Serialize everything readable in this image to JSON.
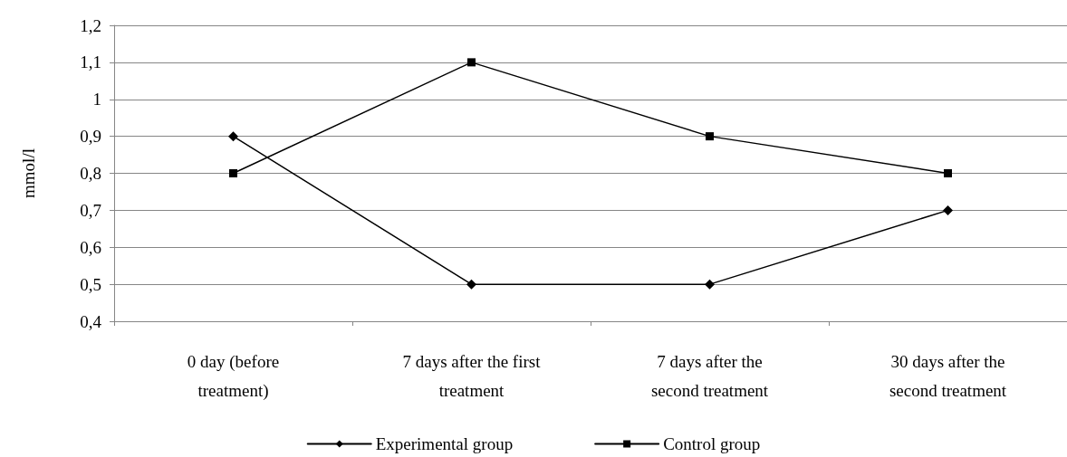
{
  "chart_data": {
    "type": "line",
    "ylabel": "mmol/l",
    "categories": [
      "0 day (before treatment)",
      "7 days after the first treatment",
      "7 days after the second treatment",
      "30 days after the second treatment"
    ],
    "series": [
      {
        "name": "Experimental group",
        "color": "#000000",
        "marker": "diamond",
        "values": [
          0.9,
          0.5,
          0.5,
          0.7
        ]
      },
      {
        "name": "Control group",
        "color": "#000000",
        "marker": "square",
        "values": [
          0.8,
          1.1,
          0.9,
          0.8
        ]
      }
    ],
    "ylim": [
      0.4,
      1.2
    ],
    "yticks": [
      {
        "value": 0.4,
        "label": "0,4"
      },
      {
        "value": 0.5,
        "label": "0,5"
      },
      {
        "value": 0.6,
        "label": "0,6"
      },
      {
        "value": 0.7,
        "label": "0,7"
      },
      {
        "value": 0.8,
        "label": "0,8"
      },
      {
        "value": 0.9,
        "label": "0,9"
      },
      1,
      {
        "value": 1.1,
        "label": "1,1"
      },
      {
        "value": 1.2,
        "label": "1,2"
      }
    ],
    "grid": "y",
    "legend": "bottom",
    "line_style": "solid"
  }
}
